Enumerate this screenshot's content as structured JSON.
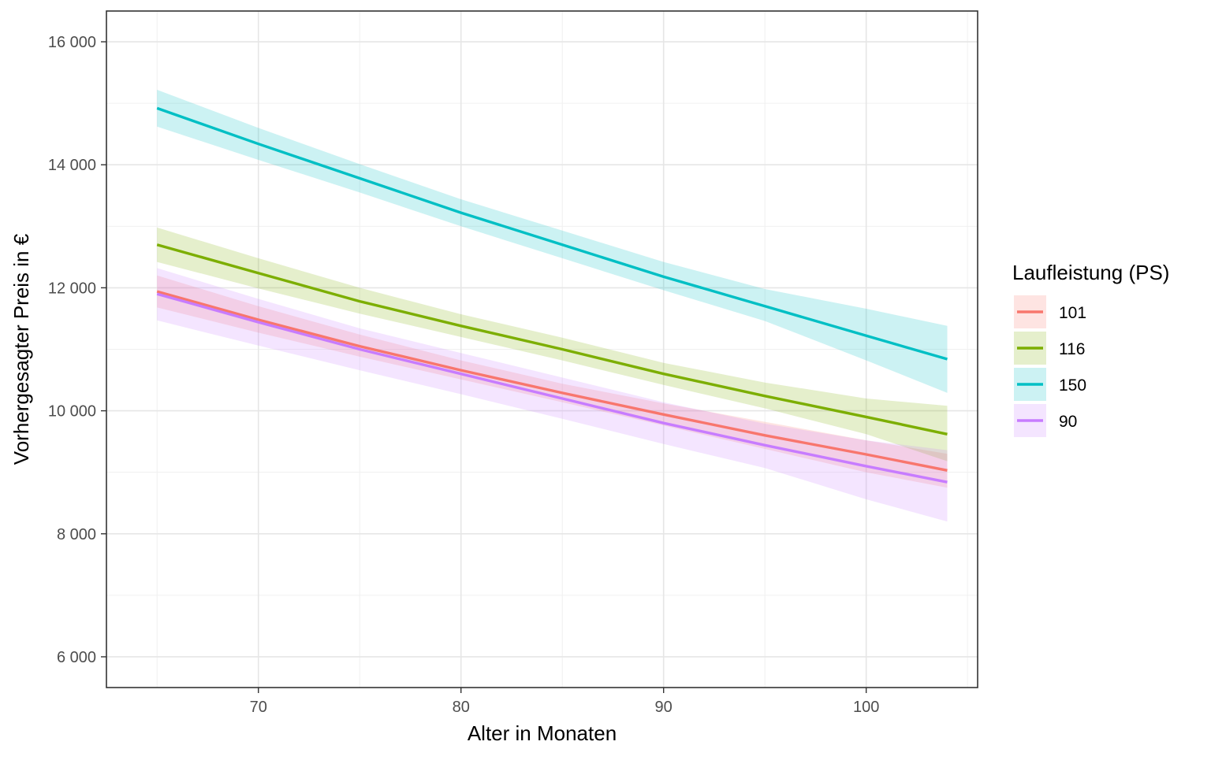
{
  "chart_data": {
    "type": "line",
    "xlabel": "Alter in Monaten",
    "ylabel": "Vorhergesagter Preis in €",
    "xlim": [
      62.5,
      105.5
    ],
    "ylim": [
      5500,
      16500
    ],
    "x_ticks": [
      70,
      80,
      90,
      100
    ],
    "x_tick_labels": [
      "70",
      "80",
      "90",
      "100"
    ],
    "y_ticks": [
      6000,
      8000,
      10000,
      12000,
      14000,
      16000
    ],
    "y_tick_labels": [
      "6 000",
      "8 000",
      "10 000",
      "12 000",
      "14 000",
      "16 000"
    ],
    "grid": true,
    "legend": {
      "title": "Laufleistung (PS)",
      "placement": "right"
    },
    "x": [
      65,
      70,
      75,
      80,
      85,
      90,
      95,
      100,
      104
    ],
    "series": [
      {
        "name": "101",
        "color": "#F8766D",
        "values": [
          11940,
          11480,
          11050,
          10660,
          10290,
          9940,
          9600,
          9290,
          9030
        ],
        "lower": [
          11680,
          11270,
          10880,
          10510,
          10140,
          9760,
          9380,
          9000,
          8750
        ],
        "upper": [
          12200,
          11700,
          11240,
          10820,
          10440,
          10120,
          9820,
          9520,
          9300
        ]
      },
      {
        "name": "116",
        "color": "#7CAE00",
        "values": [
          12700,
          12240,
          11780,
          11380,
          11000,
          10600,
          10240,
          9900,
          9620
        ],
        "lower": [
          12420,
          11990,
          11580,
          11200,
          10820,
          10420,
          10040,
          9620,
          9180
        ],
        "upper": [
          12980,
          12480,
          12000,
          11570,
          11190,
          10780,
          10460,
          10200,
          10080
        ]
      },
      {
        "name": "150",
        "color": "#00BFC4",
        "values": [
          14920,
          14340,
          13780,
          13220,
          12700,
          12180,
          11700,
          11220,
          10840
        ],
        "lower": [
          14620,
          14080,
          13550,
          13000,
          12480,
          11960,
          11460,
          10820,
          10290
        ],
        "upper": [
          15220,
          14600,
          14010,
          13440,
          12930,
          12420,
          11980,
          11660,
          11380
        ]
      },
      {
        "name": "90",
        "color": "#C77CFF",
        "values": [
          11900,
          11440,
          11000,
          10600,
          10200,
          9800,
          9440,
          9100,
          8840
        ],
        "lower": [
          11470,
          11060,
          10660,
          10270,
          9870,
          9460,
          9070,
          8560,
          8200
        ],
        "upper": [
          12320,
          11820,
          11340,
          10940,
          10540,
          10140,
          9790,
          9520,
          9360
        ]
      }
    ]
  }
}
